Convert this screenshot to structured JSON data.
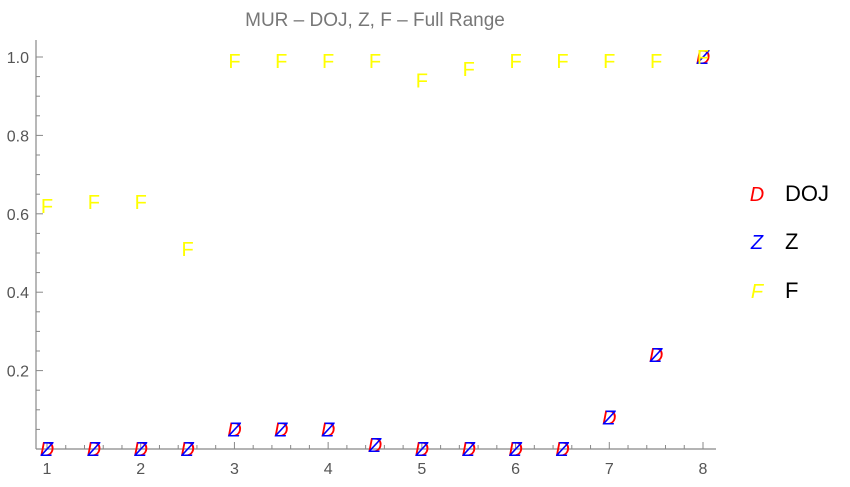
{
  "chart_data": {
    "type": "scatter",
    "title": "MUR – DOJ, Z, F – Full Range",
    "xlabel": "",
    "ylabel": "",
    "xlim": [
      1,
      8
    ],
    "ylim": [
      0,
      1.0
    ],
    "x_ticks": [
      "1",
      "2",
      "3",
      "4",
      "5",
      "6",
      "7",
      "8"
    ],
    "y_ticks": [
      "0.2",
      "0.4",
      "0.6",
      "0.8",
      "1.0"
    ],
    "x": [
      1,
      1.5,
      2,
      2.5,
      3,
      3.5,
      4,
      4.5,
      5,
      5.5,
      6,
      6.5,
      7,
      7.5,
      8
    ],
    "series": [
      {
        "name": "DOJ",
        "marker": "D",
        "color": "#ff0000",
        "values": [
          0,
          0,
          0,
          0,
          0.05,
          0.05,
          0.05,
          0.01,
          0,
          0,
          0,
          0,
          0.08,
          0.24,
          1.0
        ]
      },
      {
        "name": "Z",
        "marker": "Z",
        "color": "#0000ff",
        "values": [
          0,
          0,
          0,
          0,
          0.05,
          0.05,
          0.05,
          0.01,
          0,
          0,
          0,
          0,
          0.08,
          0.24,
          1.0
        ]
      },
      {
        "name": "F",
        "marker": "F",
        "color": "#ffff00",
        "values": [
          0.62,
          0.63,
          0.63,
          0.51,
          0.99,
          0.99,
          0.99,
          0.99,
          0.94,
          0.97,
          0.99,
          0.99,
          0.99,
          0.99,
          1.0
        ]
      }
    ],
    "legend_position": "right",
    "grid": false
  }
}
